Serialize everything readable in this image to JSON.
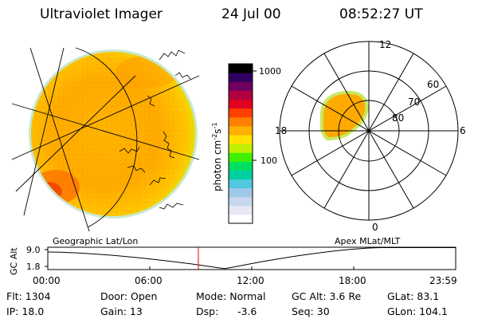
{
  "header": {
    "instrument": "Ultraviolet Imager",
    "date": "24 Jul 00",
    "time": "08:52:27 UT"
  },
  "colorbar": {
    "unit": "photon cm",
    "unit_sup1": "-2",
    "unit_mid": "s",
    "unit_sup2": "-1",
    "tick_1000": "1000",
    "tick_100": "100",
    "colors": [
      "#ffffff",
      "#e8e8f4",
      "#c8d8ec",
      "#a0c8e8",
      "#50c8e0",
      "#00d0a0",
      "#00e060",
      "#40f000",
      "#c0f000",
      "#ffe000",
      "#ffb000",
      "#ff8000",
      "#ff4000",
      "#e00020",
      "#b00040",
      "#700060",
      "#300060",
      "#000000"
    ]
  },
  "polar": {
    "label_12": "12",
    "label_6": "6",
    "label_18": "18",
    "label_0": "0",
    "label_80": "80",
    "label_70": "70",
    "label_60": "60"
  },
  "altplot": {
    "left_title": "Geographic Lat/Lon",
    "right_title": "Apex MLat/MLT",
    "ylabel": "GC Alt",
    "ytick_top": "9.0",
    "ytick_bottom": "1.8",
    "xticks": [
      "00:00",
      "06:00",
      "12:00",
      "18:00",
      "23:59"
    ],
    "marker_color": "#e00000"
  },
  "info": {
    "flt": "Flt: 1304",
    "ip": "IP: 18.0",
    "door": "Door: Open",
    "gain": "Gain: 13",
    "mode": "Mode: Normal",
    "dsp_label": "Dsp:",
    "dsp_value": "-3.6",
    "gcalt": "GC Alt: 3.6 Re",
    "seq": "Seq: 30",
    "glat": "GLat: 83.1",
    "glon": "GLon: 104.1"
  }
}
